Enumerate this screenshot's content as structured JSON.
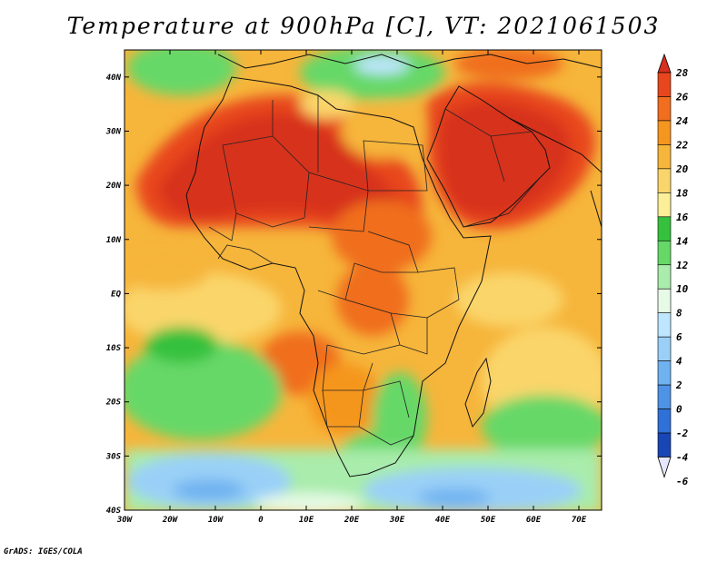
{
  "title": "Temperature at 900hPa [C], VT: 2021061503",
  "credit": "GrADS: IGES/COLA",
  "map": {
    "lat_ticks": [
      "40N",
      "30N",
      "20N",
      "10N",
      "EQ",
      "10S",
      "20S",
      "30S",
      "40S"
    ],
    "lon_ticks": [
      "30W",
      "20W",
      "10W",
      "0",
      "10E",
      "20E",
      "30E",
      "40E",
      "50E",
      "60E",
      "70E"
    ],
    "lat_range": [
      -40,
      45
    ],
    "lon_range": [
      -30,
      75
    ]
  },
  "colorbar": {
    "labels": [
      "28",
      "26",
      "24",
      "22",
      "20",
      "18",
      "16",
      "14",
      "12",
      "10",
      "8",
      "6",
      "4",
      "2",
      "0",
      "-2",
      "-4",
      "-6"
    ],
    "colors": [
      "#d7301f",
      "#e8461c",
      "#f06e1e",
      "#f5961f",
      "#f6b53b",
      "#fad56b",
      "#fcef9a",
      "#35c13d",
      "#66d867",
      "#a9ecab",
      "#e6fae6",
      "#bfe6ff",
      "#9ad0f7",
      "#6fb2f0",
      "#4e93e6",
      "#2f71d6",
      "#1946b5",
      "#0a1a7a"
    ]
  }
}
